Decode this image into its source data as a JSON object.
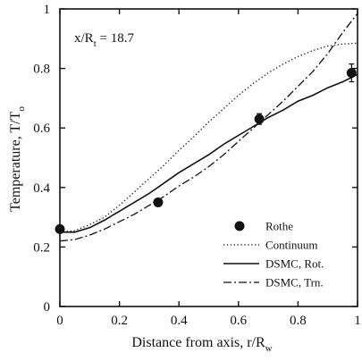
{
  "chart_data": {
    "type": "line",
    "xlabel": "Distance from axis, r/R",
    "xlabel_subscript": "w",
    "ylabel": "Temperature, T/T",
    "ylabel_subscript": "o",
    "xlim": [
      0,
      1
    ],
    "ylim": [
      0,
      1
    ],
    "x_ticks": [
      0,
      0.2,
      0.4,
      0.6,
      0.8,
      1
    ],
    "x_tick_labels": [
      "0",
      "0.2",
      "0.4",
      "0.6",
      "0.8",
      "1"
    ],
    "y_ticks": [
      0,
      0.2,
      0.4,
      0.6,
      0.8,
      1
    ],
    "y_tick_labels": [
      "0",
      "0.2",
      "0.4",
      "0.6",
      "0.8",
      "1"
    ],
    "grid": false,
    "legend_position": "bottom-right",
    "annotation": {
      "text": "x/R",
      "subscript": "t",
      "suffix": " = 18.7"
    },
    "series": [
      {
        "name": "Rothe",
        "kind": "marker",
        "style": "filled-circle",
        "x": [
          0.0,
          0.33,
          0.67,
          0.98
        ],
        "y": [
          0.26,
          0.35,
          0.63,
          0.785
        ],
        "err": [
          0.0,
          0.0,
          0.018,
          0.03
        ]
      },
      {
        "name": "Continuum",
        "kind": "line",
        "style": "dotted",
        "x": [
          0.0,
          0.05,
          0.1,
          0.15,
          0.2,
          0.25,
          0.3,
          0.35,
          0.4,
          0.45,
          0.5,
          0.55,
          0.6,
          0.65,
          0.7,
          0.75,
          0.8,
          0.85,
          0.9,
          0.95,
          1.0
        ],
        "y": [
          0.25,
          0.255,
          0.275,
          0.3,
          0.34,
          0.385,
          0.43,
          0.475,
          0.525,
          0.57,
          0.62,
          0.665,
          0.71,
          0.75,
          0.785,
          0.815,
          0.84,
          0.86,
          0.875,
          0.882,
          0.885
        ]
      },
      {
        "name": "DSMC, Rot.",
        "kind": "line",
        "style": "solid",
        "x": [
          0.0,
          0.05,
          0.1,
          0.15,
          0.2,
          0.25,
          0.3,
          0.35,
          0.4,
          0.45,
          0.5,
          0.55,
          0.6,
          0.65,
          0.7,
          0.75,
          0.8,
          0.85,
          0.9,
          0.95,
          1.0
        ],
        "y": [
          0.25,
          0.25,
          0.265,
          0.29,
          0.32,
          0.35,
          0.38,
          0.415,
          0.45,
          0.48,
          0.51,
          0.545,
          0.575,
          0.605,
          0.635,
          0.66,
          0.69,
          0.71,
          0.735,
          0.755,
          0.78
        ]
      },
      {
        "name": "DSMC, Trn.",
        "kind": "line",
        "style": "dash-dot",
        "x": [
          0.0,
          0.05,
          0.1,
          0.15,
          0.2,
          0.25,
          0.3,
          0.35,
          0.4,
          0.45,
          0.5,
          0.55,
          0.6,
          0.65,
          0.7,
          0.75,
          0.8,
          0.85,
          0.9,
          0.95,
          1.0
        ],
        "y": [
          0.22,
          0.225,
          0.24,
          0.26,
          0.285,
          0.31,
          0.34,
          0.37,
          0.405,
          0.435,
          0.47,
          0.51,
          0.555,
          0.6,
          0.645,
          0.69,
          0.74,
          0.79,
          0.85,
          0.92,
          0.985
        ]
      }
    ],
    "legend": [
      {
        "label": "Rothe",
        "style": "filled-circle"
      },
      {
        "label": "Continuum",
        "style": "dotted"
      },
      {
        "label": "DSMC, Rot.",
        "style": "solid"
      },
      {
        "label": "DSMC, Trn.",
        "style": "dash-dot"
      }
    ]
  }
}
